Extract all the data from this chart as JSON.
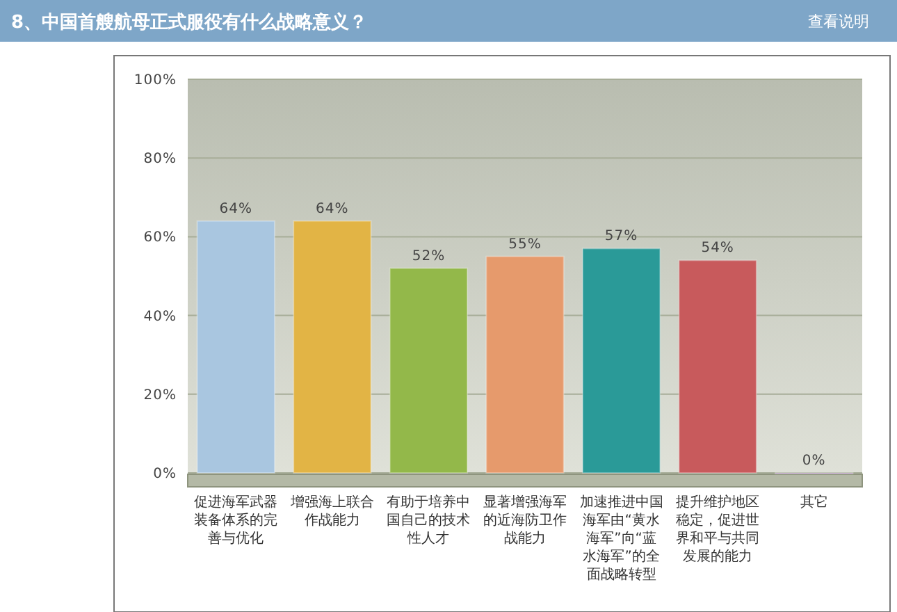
{
  "chart_data": {
    "type": "bar",
    "title": "8、中国首艘航母正式服役有什么战略意义？",
    "categories": [
      "促进海军武器装备体系的完善与优化",
      "增强海上联合作战能力",
      "有助于培养中国自己的技术性人才",
      "显著增强海军的近海防卫作战能力",
      "加速推进中国海军由“黄水海军”向“蓝水海军”的全面战略转型",
      "提升维护地区稳定，促进世界和平与共同发展的能力",
      "其它"
    ],
    "values": [
      64,
      64,
      52,
      55,
      57,
      54,
      0
    ],
    "colors": [
      "#a9c6e0",
      "#e2b445",
      "#93b84a",
      "#e69a6c",
      "#2a9a98",
      "#c85a5c",
      "#b78cc8"
    ],
    "value_labels": [
      "64%",
      "64%",
      "52%",
      "55%",
      "57%",
      "54%",
      "0%"
    ],
    "ylim": [
      0,
      100
    ],
    "yticks": [
      {
        "value": 0,
        "label": "0%"
      },
      {
        "value": 20,
        "label": "20%"
      },
      {
        "value": 40,
        "label": "40%"
      },
      {
        "value": 60,
        "label": "60%"
      },
      {
        "value": 80,
        "label": "80%"
      },
      {
        "value": 100,
        "label": "100%"
      }
    ],
    "grid": "y",
    "annotations": [
      "查看说明"
    ]
  }
}
